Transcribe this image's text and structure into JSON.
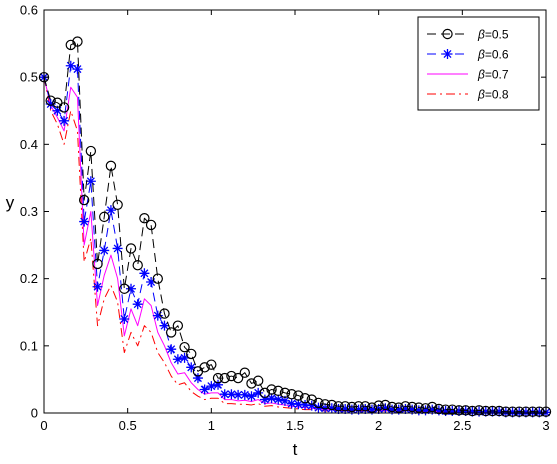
{
  "chart_data": {
    "type": "line",
    "title": "",
    "xlabel": "t",
    "ylabel": "y",
    "xlim": [
      0,
      3
    ],
    "ylim": [
      0,
      0.6
    ],
    "xticks": [
      0,
      0.5,
      1,
      1.5,
      2,
      2.5,
      3
    ],
    "xtick_labels": [
      "0",
      "0.5",
      "1",
      "1.5",
      "2",
      "2.5",
      "3"
    ],
    "yticks": [
      0,
      0.1,
      0.2,
      0.3,
      0.4,
      0.5,
      0.6
    ],
    "ytick_labels": [
      "0",
      "0.1",
      "0.2",
      "0.3",
      "0.4",
      "0.5",
      "0.6"
    ],
    "grid": false,
    "legend_position": "top-right",
    "x": [
      0,
      0.04,
      0.08,
      0.12,
      0.16,
      0.2,
      0.24,
      0.28,
      0.32,
      0.36,
      0.4,
      0.44,
      0.48,
      0.52,
      0.56,
      0.6,
      0.64,
      0.68,
      0.72,
      0.76,
      0.8,
      0.84,
      0.88,
      0.92,
      0.96,
      1.0,
      1.04,
      1.08,
      1.12,
      1.16,
      1.2,
      1.24,
      1.28,
      1.32,
      1.36,
      1.4,
      1.44,
      1.48,
      1.52,
      1.56,
      1.6,
      1.64,
      1.68,
      1.72,
      1.76,
      1.8,
      1.84,
      1.88,
      1.92,
      1.96,
      2.0,
      2.04,
      2.08,
      2.12,
      2.16,
      2.2,
      2.24,
      2.28,
      2.32,
      2.36,
      2.4,
      2.44,
      2.48,
      2.52,
      2.56,
      2.6,
      2.64,
      2.68,
      2.72,
      2.76,
      2.8,
      2.84,
      2.88,
      2.92,
      2.96,
      3.0
    ],
    "series": [
      {
        "name": "β=0.5",
        "legend_prefix": "β",
        "legend_suffix": "=0.5",
        "color": "#000000",
        "style": "dashed",
        "marker": "circle",
        "values": [
          0.5,
          0.465,
          0.462,
          0.455,
          0.548,
          0.553,
          0.317,
          0.39,
          0.222,
          0.292,
          0.368,
          0.31,
          0.185,
          0.245,
          0.22,
          0.29,
          0.28,
          0.2,
          0.148,
          0.12,
          0.13,
          0.098,
          0.088,
          0.062,
          0.068,
          0.072,
          0.052,
          0.052,
          0.055,
          0.052,
          0.06,
          0.044,
          0.048,
          0.03,
          0.035,
          0.033,
          0.03,
          0.028,
          0.026,
          0.022,
          0.02,
          0.015,
          0.013,
          0.012,
          0.01,
          0.01,
          0.009,
          0.01,
          0.01,
          0.008,
          0.011,
          0.012,
          0.009,
          0.008,
          0.01,
          0.009,
          0.008,
          0.007,
          0.009,
          0.006,
          0.005,
          0.005,
          0.004,
          0.004,
          0.003,
          0.004,
          0.003,
          0.003,
          0.003,
          0.002,
          0.002,
          0.002,
          0.002,
          0.002,
          0.002,
          0.002
        ]
      },
      {
        "name": "β=0.6",
        "legend_prefix": "β",
        "legend_suffix": "=0.6",
        "color": "#0000ff",
        "style": "dashed",
        "marker": "star",
        "values": [
          0.5,
          0.46,
          0.45,
          0.435,
          0.517,
          0.512,
          0.285,
          0.345,
          0.188,
          0.242,
          0.302,
          0.245,
          0.14,
          0.185,
          0.162,
          0.208,
          0.195,
          0.145,
          0.13,
          0.095,
          0.08,
          0.082,
          0.068,
          0.052,
          0.035,
          0.04,
          0.042,
          0.028,
          0.028,
          0.027,
          0.027,
          0.025,
          0.03,
          0.02,
          0.022,
          0.02,
          0.018,
          0.014,
          0.013,
          0.012,
          0.011,
          0.008,
          0.007,
          0.007,
          0.006,
          0.006,
          0.005,
          0.005,
          0.006,
          0.005,
          0.006,
          0.007,
          0.005,
          0.005,
          0.006,
          0.005,
          0.004,
          0.004,
          0.005,
          0.004,
          0.003,
          0.003,
          0.003,
          0.003,
          0.002,
          0.002,
          0.002,
          0.002,
          0.002,
          0.001,
          0.001,
          0.001,
          0.001,
          0.001,
          0.001,
          0.001
        ]
      },
      {
        "name": "β=0.7",
        "legend_prefix": "β",
        "legend_suffix": "=0.7",
        "color": "#ff00ff",
        "style": "solid",
        "marker": "none",
        "values": [
          0.5,
          0.458,
          0.44,
          0.42,
          0.485,
          0.47,
          0.25,
          0.3,
          0.16,
          0.205,
          0.235,
          0.2,
          0.115,
          0.155,
          0.13,
          0.17,
          0.16,
          0.12,
          0.1,
          0.075,
          0.058,
          0.06,
          0.045,
          0.035,
          0.028,
          0.03,
          0.03,
          0.02,
          0.02,
          0.018,
          0.019,
          0.017,
          0.02,
          0.014,
          0.015,
          0.013,
          0.012,
          0.01,
          0.009,
          0.008,
          0.007,
          0.006,
          0.005,
          0.005,
          0.004,
          0.004,
          0.004,
          0.004,
          0.004,
          0.003,
          0.004,
          0.004,
          0.003,
          0.003,
          0.004,
          0.003,
          0.003,
          0.003,
          0.003,
          0.002,
          0.002,
          0.002,
          0.002,
          0.002,
          0.001,
          0.001,
          0.001,
          0.001,
          0.001,
          0.001,
          0.001,
          0.001,
          0.001,
          0.001,
          0.001,
          0.001
        ]
      },
      {
        "name": "β=0.8",
        "legend_prefix": "β",
        "legend_suffix": "=0.8",
        "color": "#ff0000",
        "style": "dashdot",
        "marker": "none",
        "values": [
          0.5,
          0.45,
          0.43,
          0.4,
          0.45,
          0.42,
          0.225,
          0.26,
          0.13,
          0.17,
          0.19,
          0.165,
          0.09,
          0.12,
          0.1,
          0.13,
          0.12,
          0.09,
          0.075,
          0.055,
          0.042,
          0.045,
          0.032,
          0.025,
          0.02,
          0.022,
          0.022,
          0.014,
          0.014,
          0.013,
          0.013,
          0.012,
          0.014,
          0.01,
          0.011,
          0.009,
          0.008,
          0.007,
          0.006,
          0.005,
          0.005,
          0.004,
          0.003,
          0.003,
          0.003,
          0.003,
          0.003,
          0.003,
          0.003,
          0.002,
          0.003,
          0.003,
          0.002,
          0.002,
          0.003,
          0.002,
          0.002,
          0.002,
          0.002,
          0.001,
          0.001,
          0.001,
          0.001,
          0.001,
          0.001,
          0.001,
          0.001,
          0.001,
          0.001,
          0.001,
          0.001,
          0.001,
          0.001,
          0.001,
          0.001,
          0.001
        ]
      }
    ]
  }
}
